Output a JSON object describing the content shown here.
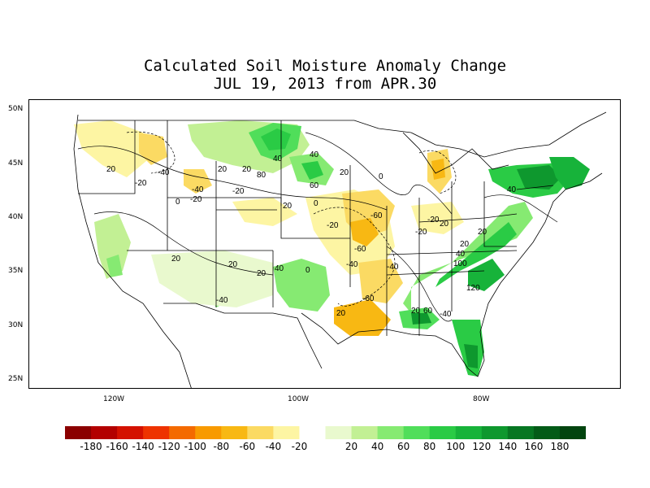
{
  "title": {
    "line1": "Calculated Soil Moisture Anomaly Change",
    "line2": "JUL 19, 2013 from APR.30"
  },
  "axes": {
    "lat_labels": [
      "50N",
      "45N",
      "40N",
      "35N",
      "30N",
      "25N"
    ],
    "lon_labels": [
      "120W",
      "100W",
      "80W"
    ]
  },
  "legend": {
    "colors": [
      "#8b0000",
      "#b30000",
      "#d41100",
      "#ee3300",
      "#f46a00",
      "#f89a00",
      "#f8b813",
      "#fbda63",
      "#fdf5a3",
      "#ffffff",
      "#e9f9ce",
      "#c2f094",
      "#86ea72",
      "#50de5a",
      "#2acb45",
      "#17b33a",
      "#0e982e",
      "#077622",
      "#035b17",
      "#02440f"
    ],
    "labels": [
      "-180",
      "-160",
      "-140",
      "-120",
      "-100",
      "-80",
      "-60",
      "-40",
      "-20",
      "20",
      "40",
      "60",
      "80",
      "100",
      "120",
      "140",
      "160",
      "180"
    ]
  },
  "contour_labels": [
    {
      "text": "20"
    },
    {
      "text": "-20"
    },
    {
      "text": "-40"
    },
    {
      "text": "0"
    },
    {
      "text": "-20"
    },
    {
      "text": "-40"
    },
    {
      "text": "20"
    },
    {
      "text": "20"
    },
    {
      "text": "-20"
    },
    {
      "text": "80"
    },
    {
      "text": "40"
    },
    {
      "text": "40"
    },
    {
      "text": "60"
    },
    {
      "text": "20"
    },
    {
      "text": "0"
    },
    {
      "text": "20"
    },
    {
      "text": "0"
    },
    {
      "text": "-20"
    },
    {
      "text": "-60"
    },
    {
      "text": "-20"
    },
    {
      "text": "-40"
    },
    {
      "text": "-60"
    },
    {
      "text": "-20"
    },
    {
      "text": "20"
    },
    {
      "text": "40"
    },
    {
      "text": "20"
    },
    {
      "text": "20"
    },
    {
      "text": "100"
    },
    {
      "text": "120"
    },
    {
      "text": "-40"
    },
    {
      "text": "-60"
    },
    {
      "text": "20"
    },
    {
      "text": "60"
    },
    {
      "text": "-40"
    },
    {
      "text": "20"
    },
    {
      "text": "20"
    },
    {
      "text": "40"
    },
    {
      "text": "-40"
    },
    {
      "text": "20"
    },
    {
      "text": "0"
    },
    {
      "text": "40"
    },
    {
      "text": "20"
    }
  ]
}
